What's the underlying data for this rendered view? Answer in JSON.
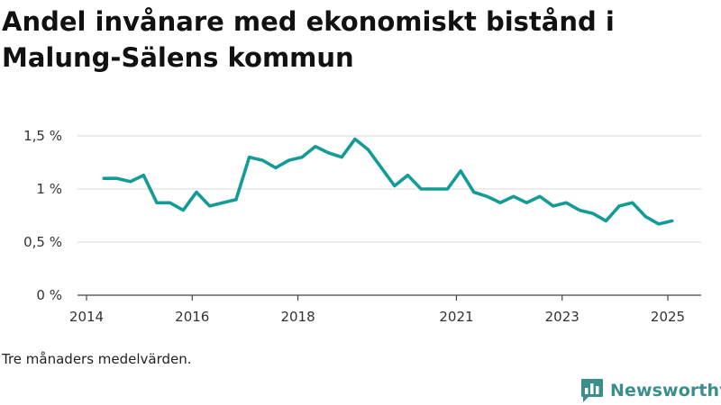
{
  "title": "Andel invånare med ekonomiskt bistånd i Malung-Sälens kommun",
  "note": "Tre månaders medelvärden.",
  "brand": {
    "name": "Newsworthy",
    "color": "#3a8f8c",
    "logo_icon": "bar-chart-speech-bubble-icon"
  },
  "chart_data": {
    "type": "line",
    "title": "Andel invånare med ekonomiskt bistånd i Malung-Sälens kommun",
    "xlabel": "",
    "ylabel": "",
    "ylim": [
      0,
      1.5
    ],
    "xlim": [
      2014.0,
      2025.3
    ],
    "grid": true,
    "line_color": "#139c95",
    "y_ticks": [
      {
        "value": 0,
        "label": "0 %"
      },
      {
        "value": 0.5,
        "label": "0,5 %"
      },
      {
        "value": 1,
        "label": "1 %"
      },
      {
        "value": 1.5,
        "label": "1,5 %"
      }
    ],
    "x_ticks": [
      {
        "value": 2014,
        "label": "2014"
      },
      {
        "value": 2016,
        "label": "2016"
      },
      {
        "value": 2018,
        "label": "2018"
      },
      {
        "value": 2021,
        "label": "2021"
      },
      {
        "value": 2023,
        "label": "2023"
      },
      {
        "value": 2025,
        "label": "2025"
      }
    ],
    "series": [
      {
        "x": [
          2014.33,
          2014.58,
          2014.83,
          2015.08,
          2015.33,
          2015.58,
          2015.83,
          2016.08,
          2016.33,
          2016.58,
          2016.83,
          2017.08,
          2017.33,
          2017.58,
          2017.83,
          2018.08,
          2018.33,
          2018.58,
          2018.83,
          2019.08,
          2019.33,
          2019.58,
          2019.83,
          2020.08,
          2020.33,
          2020.58,
          2020.83,
          2021.08,
          2021.33,
          2021.58,
          2021.83,
          2022.08,
          2022.33,
          2022.58,
          2022.83,
          2023.08,
          2023.33,
          2023.58,
          2023.83,
          2024.08,
          2024.33,
          2024.58,
          2024.83,
          2025.08
        ],
        "values": [
          1.1,
          1.1,
          1.07,
          1.13,
          0.87,
          0.87,
          0.8,
          0.97,
          0.84,
          0.87,
          0.9,
          1.3,
          1.27,
          1.2,
          1.27,
          1.3,
          1.4,
          1.34,
          1.3,
          1.47,
          1.37,
          1.2,
          1.03,
          1.13,
          1.0,
          1.0,
          1.0,
          1.17,
          0.97,
          0.93,
          0.87,
          0.93,
          0.87,
          0.93,
          0.84,
          0.87,
          0.8,
          0.77,
          0.7,
          0.84,
          0.87,
          0.74,
          0.67,
          0.7
        ]
      }
    ]
  }
}
